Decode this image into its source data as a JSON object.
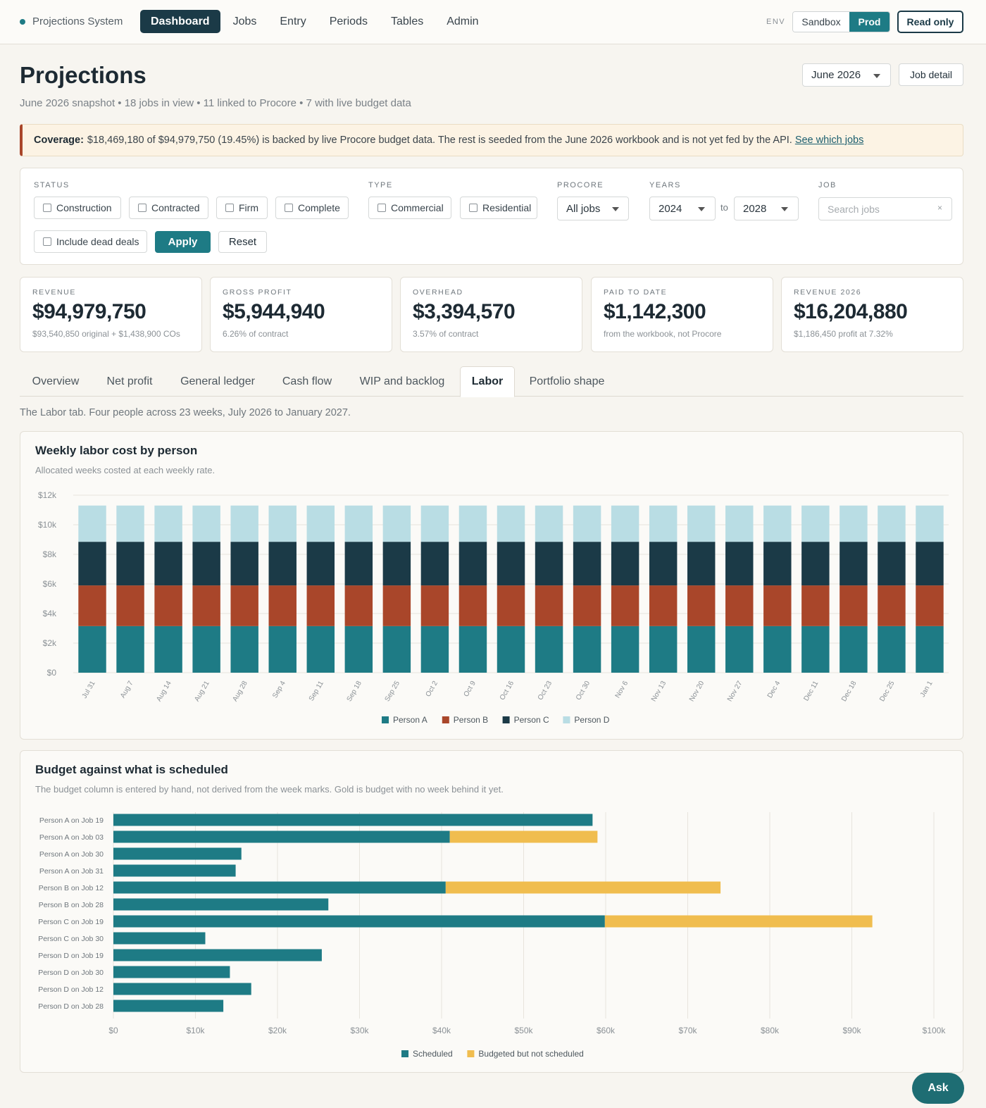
{
  "app": {
    "name": "Projections System",
    "nav": [
      "Dashboard",
      "Jobs",
      "Entry",
      "Periods",
      "Tables",
      "Admin"
    ],
    "env_label": "ENV",
    "env_options": [
      "Sandbox",
      "Prod"
    ],
    "read_only_label": "Read only"
  },
  "header": {
    "title": "Projections",
    "subtitle": "June 2026 snapshot • 18 jobs in view • 11 linked to Procore • 7 with live budget data",
    "period": "June 2026",
    "job_detail_label": "Job detail"
  },
  "coverage": {
    "label": "Coverage:",
    "text": "$18,469,180 of $94,979,750 (19.45%) is backed by live Procore budget data. The rest is seeded from the June 2026 workbook and is not yet fed by the API.",
    "link": "See which jobs"
  },
  "filters": {
    "status_label": "STATUS",
    "status_options": [
      "Construction",
      "Contracted",
      "Firm",
      "Complete"
    ],
    "dead_deals_label": "Include dead deals",
    "type_label": "TYPE",
    "type_options": [
      "Commercial",
      "Residential"
    ],
    "procore_label": "PROCORE",
    "procore_value": "All jobs",
    "years_label": "YEARS",
    "year_from": "2024",
    "year_to_label": "to",
    "year_to": "2028",
    "job_label": "JOB",
    "job_placeholder": "Search jobs",
    "clear_icon": "×",
    "apply_label": "Apply",
    "reset_label": "Reset"
  },
  "metrics": [
    {
      "label": "REVENUE",
      "value": "$94,979,750",
      "sub": "$93,540,850 original + $1,438,900 COs"
    },
    {
      "label": "GROSS PROFIT",
      "value": "$5,944,940",
      "sub": "6.26% of contract"
    },
    {
      "label": "OVERHEAD",
      "value": "$3,394,570",
      "sub": "3.57% of contract"
    },
    {
      "label": "PAID TO DATE",
      "value": "$1,142,300",
      "sub": "from the workbook, not Procore"
    },
    {
      "label": "REVENUE 2026",
      "value": "$16,204,880",
      "sub": "$1,186,450 profit at 7.32%"
    }
  ],
  "tabs": [
    "Overview",
    "Net profit",
    "General ledger",
    "Cash flow",
    "WIP and backlog",
    "Labor",
    "Portfolio shape"
  ],
  "active_tab": "Labor",
  "tab_description": "The Labor tab. Four people across 23 weeks, July 2026 to January 2027.",
  "labor_chart": {
    "title": "Weekly labor cost by person",
    "subtitle": "Allocated weeks costed at each weekly rate."
  },
  "budget_chart": {
    "title": "Budget against what is scheduled",
    "subtitle": "The budget column is entered by hand, not derived from the week marks. Gold is budget with no week behind it yet."
  },
  "ask_label": "Ask",
  "colors": {
    "person_a": "#1e7b85",
    "person_b": "#a9462a",
    "person_c": "#1b3a47",
    "person_d": "#b9dde4",
    "scheduled": "#1e7b85",
    "unscheduled": "#f0bd4f",
    "accent": "#1b3a47"
  },
  "chart_data": [
    {
      "type": "bar",
      "stacked": true,
      "title": "Weekly labor cost by person",
      "subtitle": "Allocated weeks costed at each weekly rate.",
      "categories": [
        "Jul 31",
        "Aug 7",
        "Aug 14",
        "Aug 21",
        "Aug 28",
        "Sep 4",
        "Sep 11",
        "Sep 18",
        "Sep 25",
        "Oct 2",
        "Oct 9",
        "Oct 16",
        "Oct 23",
        "Oct 30",
        "Nov 6",
        "Nov 13",
        "Nov 20",
        "Nov 27",
        "Dec 4",
        "Dec 11",
        "Dec 18",
        "Dec 25",
        "Jan 1"
      ],
      "series": [
        {
          "name": "Person A",
          "values": [
            3150,
            3150,
            3150,
            3150,
            3150,
            3150,
            3150,
            3150,
            3150,
            3150,
            3150,
            3150,
            3150,
            3150,
            3150,
            3150,
            3150,
            3150,
            3150,
            3150,
            3150,
            3150,
            3150
          ]
        },
        {
          "name": "Person B",
          "values": [
            2750,
            2750,
            2750,
            2750,
            2750,
            2750,
            2750,
            2750,
            2750,
            2750,
            2750,
            2750,
            2750,
            2750,
            2750,
            2750,
            2750,
            2750,
            2750,
            2750,
            2750,
            2750,
            2750
          ]
        },
        {
          "name": "Person C",
          "values": [
            2950,
            2950,
            2950,
            2950,
            2950,
            2950,
            2950,
            2950,
            2950,
            2950,
            2950,
            2950,
            2950,
            2950,
            2950,
            2950,
            2950,
            2950,
            2950,
            2950,
            2950,
            2950,
            2950
          ]
        },
        {
          "name": "Person D",
          "values": [
            2450,
            2450,
            2450,
            2450,
            2450,
            2450,
            2450,
            2450,
            2450,
            2450,
            2450,
            2450,
            2450,
            2450,
            2450,
            2450,
            2450,
            2450,
            2450,
            2450,
            2450,
            2450,
            2450
          ]
        }
      ],
      "ylim": [
        0,
        12000
      ],
      "yticks": [
        "$0",
        "$2k",
        "$4k",
        "$6k",
        "$8k",
        "$10k",
        "$12k"
      ],
      "legend_position": "bottom",
      "grid": true
    },
    {
      "type": "bar",
      "orientation": "horizontal",
      "stacked": true,
      "title": "Budget against what is scheduled",
      "subtitle": "The budget column is entered by hand, not derived from the week marks. Gold is budget with no week behind it yet.",
      "categories": [
        "Person A on Job 19",
        "Person A on Job 03",
        "Person A on Job 30",
        "Person A on Job 31",
        "Person B on Job 12",
        "Person B on Job 28",
        "Person C on Job 19",
        "Person C on Job 30",
        "Person D on Job 19",
        "Person D on Job 30",
        "Person D on Job 12",
        "Person D on Job 28"
      ],
      "series": [
        {
          "name": "Scheduled",
          "values": [
            58400,
            41000,
            15600,
            14900,
            40500,
            26200,
            59900,
            11200,
            25400,
            14200,
            16800,
            13400
          ]
        },
        {
          "name": "Budgeted but not scheduled",
          "values": [
            0,
            18000,
            0,
            0,
            33500,
            0,
            32600,
            0,
            0,
            0,
            0,
            0
          ]
        }
      ],
      "xlim": [
        0,
        100000
      ],
      "xticks": [
        "$0",
        "$10k",
        "$20k",
        "$30k",
        "$40k",
        "$50k",
        "$60k",
        "$70k",
        "$80k",
        "$90k",
        "$100k"
      ],
      "legend_position": "bottom",
      "grid": true
    }
  ]
}
